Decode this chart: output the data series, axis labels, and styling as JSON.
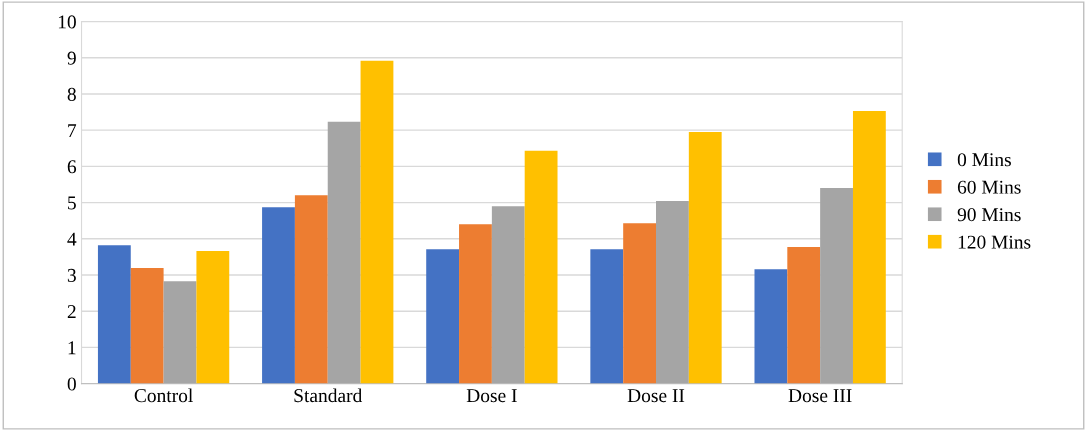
{
  "chart_data": {
    "type": "bar",
    "categories": [
      "Control",
      "Standard",
      "Dose I",
      "Dose II",
      "Dose III"
    ],
    "series": [
      {
        "name": "0 Mins",
        "color": "#4472c4",
        "values": [
          3.82,
          4.87,
          3.71,
          3.71,
          3.16
        ]
      },
      {
        "name": "60 Mins",
        "color": "#ed7d31",
        "values": [
          3.19,
          5.2,
          4.4,
          4.43,
          3.77
        ]
      },
      {
        "name": "90 Mins",
        "color": "#a5a5a5",
        "values": [
          2.83,
          7.23,
          4.9,
          5.04,
          5.4
        ]
      },
      {
        "name": "120 Mins",
        "color": "#ffc000",
        "values": [
          3.66,
          8.92,
          6.43,
          6.95,
          7.53
        ]
      }
    ],
    "ylim": [
      0,
      10
    ],
    "yticks": [
      0,
      1,
      2,
      3,
      4,
      5,
      6,
      7,
      8,
      9,
      10
    ],
    "grid": "y",
    "legend": "right"
  }
}
